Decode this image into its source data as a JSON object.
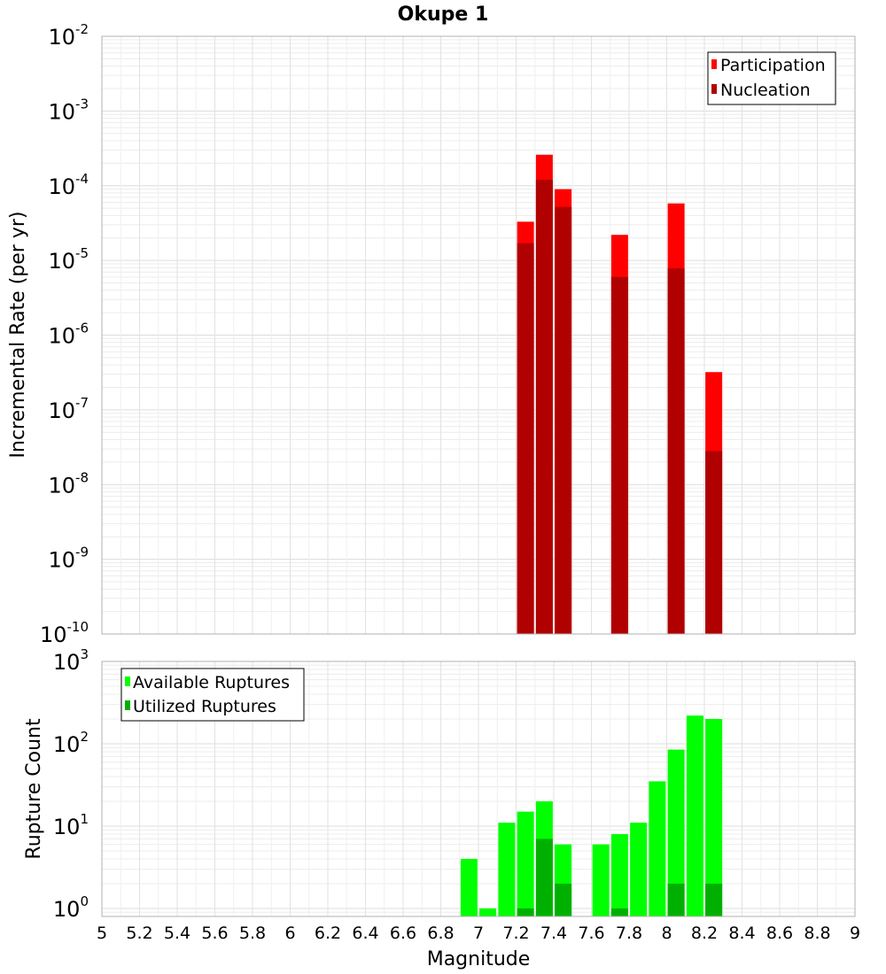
{
  "chart_data": [
    {
      "type": "bar",
      "title": "Okupe 1",
      "xlabel": "Magnitude",
      "ylabel": "Incremental Rate (per yr)",
      "yscale": "log",
      "ylim": [
        1e-10,
        0.01
      ],
      "xlim": [
        5,
        9
      ],
      "grid": true,
      "legend_position": "top-right",
      "x": [
        7.25,
        7.35,
        7.45,
        7.75,
        8.05,
        8.25
      ],
      "series": [
        {
          "name": "Participation",
          "color": "#ff0000",
          "values": [
            3.3e-05,
            0.00026,
            9e-05,
            2.2e-05,
            5.8e-05,
            3.2e-07
          ]
        },
        {
          "name": "Nucleation",
          "color": "#b00000",
          "values": [
            1.7e-05,
            0.00012,
            5.2e-05,
            6e-06,
            7.8e-06,
            2.8e-08
          ]
        }
      ],
      "ytick_exponents": [
        -10,
        -9,
        -8,
        -7,
        -6,
        -5,
        -4,
        -3,
        -2
      ]
    },
    {
      "type": "bar",
      "title": "",
      "xlabel": "Magnitude",
      "ylabel": "Rupture Count",
      "yscale": "log",
      "ylim": [
        0.8,
        1000
      ],
      "xlim": [
        5,
        9
      ],
      "grid": true,
      "legend_position": "top-left",
      "x": [
        6.95,
        7.05,
        7.15,
        7.25,
        7.35,
        7.45,
        7.65,
        7.75,
        7.85,
        7.95,
        8.05,
        8.15,
        8.25
      ],
      "series": [
        {
          "name": "Available Ruptures",
          "color": "#00ff00",
          "values": [
            4,
            1,
            11,
            15,
            20,
            6,
            6,
            8,
            11,
            35,
            85,
            220,
            200
          ]
        },
        {
          "name": "Utilized Ruptures",
          "color": "#00b000",
          "values": [
            0,
            0,
            0,
            1,
            7,
            2,
            0,
            1,
            0,
            0,
            2,
            0,
            2
          ]
        }
      ],
      "ytick_exponents": [
        0,
        1,
        2,
        3
      ]
    }
  ],
  "xtick_labels": [
    "5",
    "5.2",
    "5.4",
    "5.6",
    "5.8",
    "6",
    "6.2",
    "6.4",
    "6.6",
    "6.8",
    "7",
    "7.2",
    "7.4",
    "7.6",
    "7.8",
    "8",
    "8.2",
    "8.4",
    "8.6",
    "8.8",
    "9"
  ],
  "ytick_base": "10"
}
